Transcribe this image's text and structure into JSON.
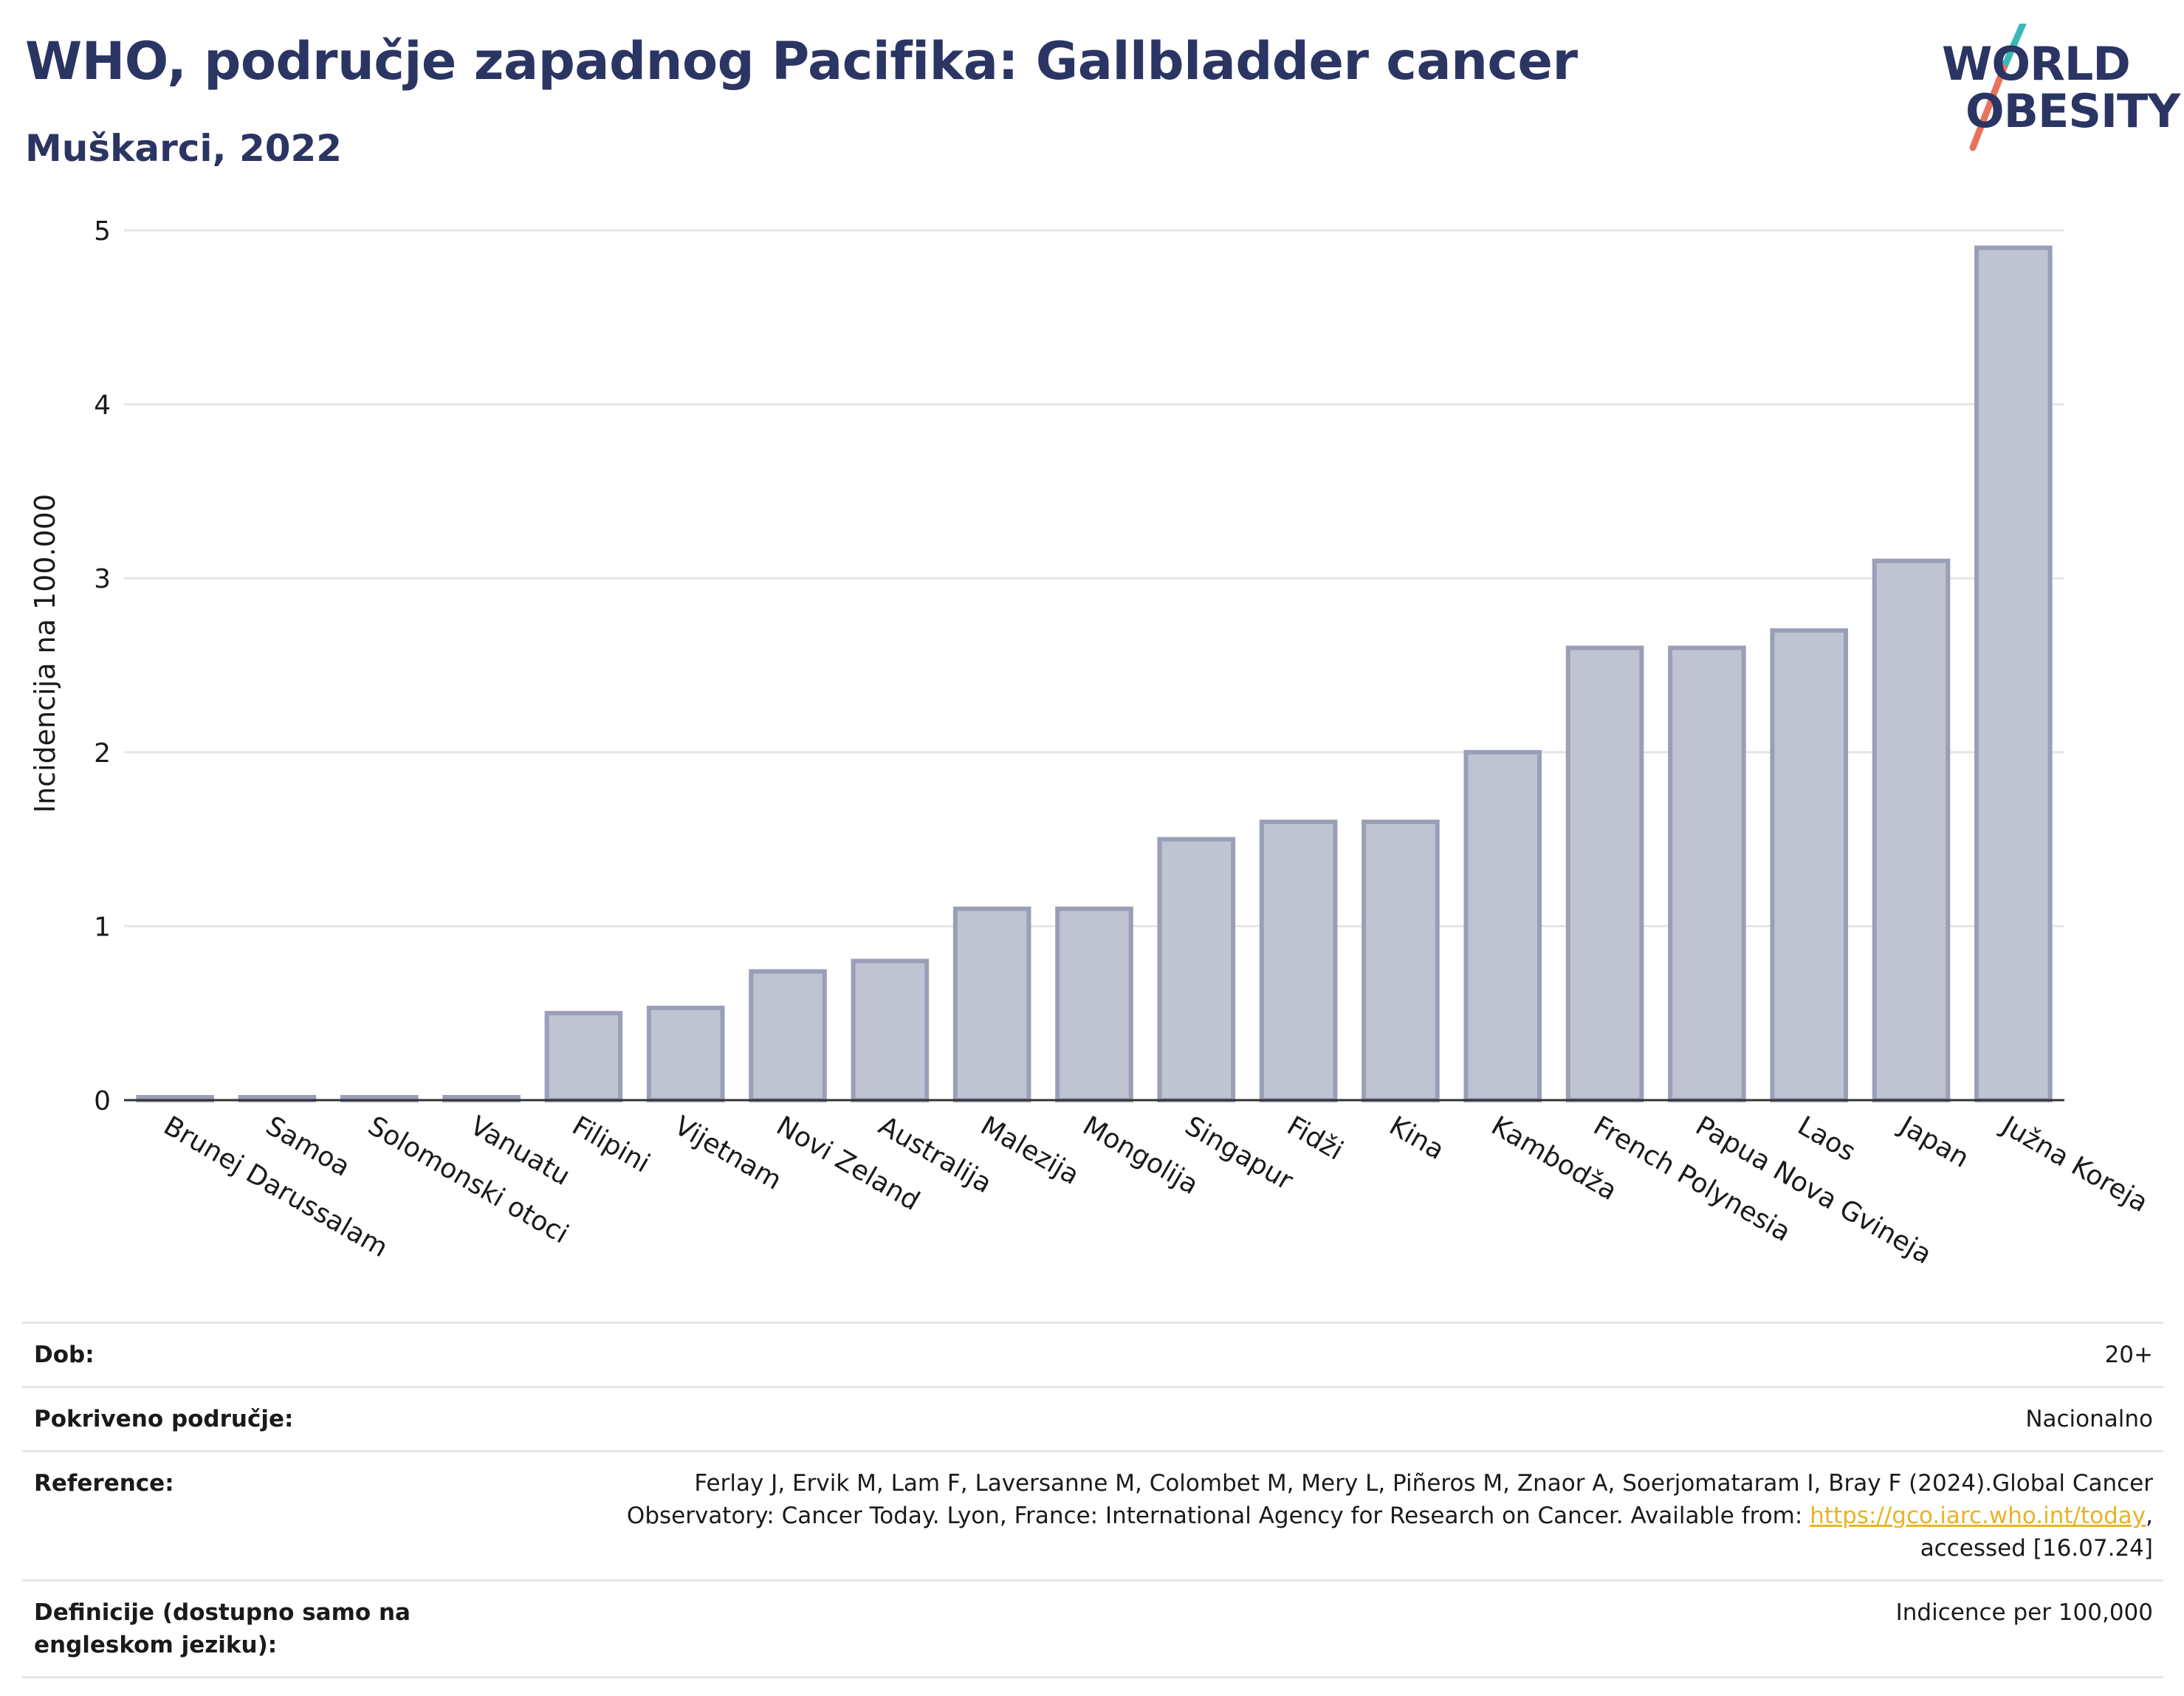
{
  "header": {
    "title": "WHO, područje zapadnog Pacifika: Gallbladder cancer",
    "subtitle": "Muškarci, 2022"
  },
  "logo": {
    "line1": "WORLD",
    "line2": "OBESITY",
    "accent_colors": [
      "#3bb8b8",
      "#e8735a"
    ]
  },
  "chart_data": {
    "type": "bar",
    "ylabel": "Incidencija na 100.000",
    "ylim": [
      0,
      5
    ],
    "yticks": [
      0,
      1,
      2,
      3,
      4,
      5
    ],
    "grid": true,
    "bar_color": "#c0c3d2",
    "bar_border_color": "#9a9fb7",
    "categories": [
      "Brunej Darussalam",
      "Samoa",
      "Solomonski otoci",
      "Vanuatu",
      "Filipini",
      "Vijetnam",
      "Novi Zeland",
      "Australija",
      "Malezija",
      "Mongolija",
      "Singapur",
      "Fidži",
      "Kina",
      "Kambodža",
      "French Polynesia",
      "Papua Nova Gvineja",
      "Laos",
      "Japan",
      "Južna Koreja"
    ],
    "values": [
      0,
      0,
      0,
      0,
      0.5,
      0.53,
      0.74,
      0.8,
      1.1,
      1.1,
      1.5,
      1.6,
      1.6,
      2.0,
      2.6,
      2.6,
      2.7,
      3.1,
      4.9
    ]
  },
  "meta": {
    "age_label": "Dob:",
    "age_value": "20+",
    "coverage_label": "Pokriveno područje:",
    "coverage_value": "Nacionalno",
    "reference_label": "Reference:",
    "reference_text_1": "Ferlay J, Ervik M, Lam F, Laversanne M, Colombet M, Mery L, Piñeros M, Znaor A, Soerjomataram I, Bray F (2024).Global Cancer",
    "reference_text_2": "Observatory: Cancer Today. Lyon, France: International Agency for Research on Cancer. Available from: ",
    "reference_link": "https://gco.iarc.who.int/today",
    "reference_text_3": ",",
    "reference_text_4": "accessed [16.07.24]",
    "definition_label": "Definicije (dostupno samo na engleskom jeziku):",
    "definition_value": "Indicence per 100,000"
  }
}
